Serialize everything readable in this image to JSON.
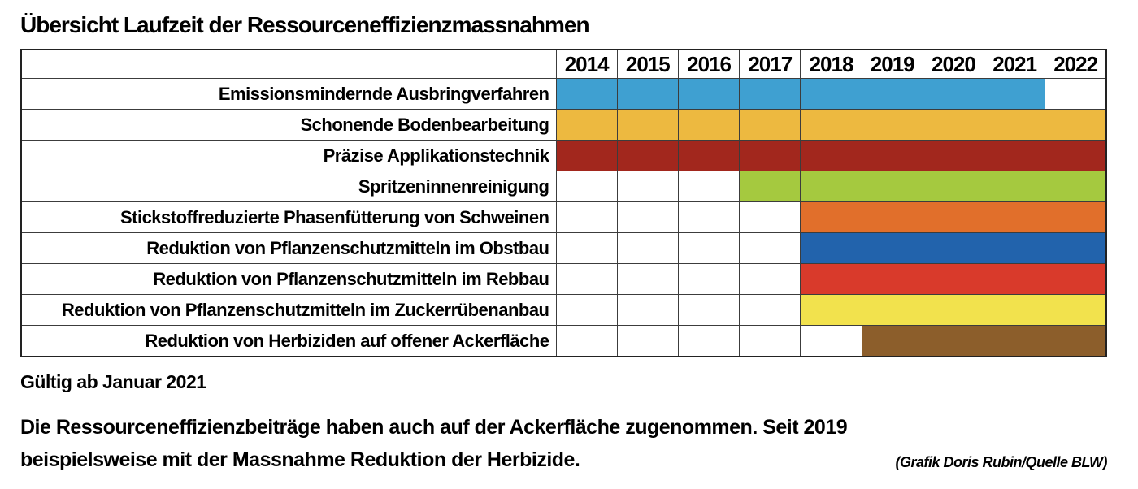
{
  "title": "Übersicht Laufzeit der Ressourceneffizienzmassnahmen",
  "chart_data": {
    "type": "gantt",
    "x_axis_label": "",
    "y_axis_label": "",
    "years": [
      2014,
      2015,
      2016,
      2017,
      2018,
      2019,
      2020,
      2021,
      2022
    ],
    "grid": true,
    "legend_position": "none",
    "measures": [
      {
        "label": "Emissionsmindernde Ausbringverfahren",
        "start": 2014,
        "end": 2021,
        "color": "#3FA0D1"
      },
      {
        "label": "Schonende Bodenbearbeitung",
        "start": 2014,
        "end": 2022,
        "color": "#EDB940"
      },
      {
        "label": "Präzise Applikationstechnik",
        "start": 2014,
        "end": 2022,
        "color": "#A2271D"
      },
      {
        "label": "Spritzeninnenreinigung",
        "start": 2017,
        "end": 2022,
        "color": "#A5C93F"
      },
      {
        "label": "Stickstoffreduzierte Phasenfütterung von Schweinen",
        "start": 2018,
        "end": 2022,
        "color": "#E16F2B"
      },
      {
        "label": "Reduktion von Pflanzenschutzmitteln im Obstbau",
        "start": 2018,
        "end": 2022,
        "color": "#2263AC"
      },
      {
        "label": "Reduktion von Pflanzenschutzmitteln im Rebbau",
        "start": 2018,
        "end": 2022,
        "color": "#D93A2B"
      },
      {
        "label": "Reduktion von Pflanzenschutzmitteln im Zuckerrübenanbau",
        "start": 2018,
        "end": 2022,
        "color": "#F2E24D"
      },
      {
        "label": "Reduktion von Herbiziden auf offener Ackerfläche",
        "start": 2019,
        "end": 2022,
        "color": "#8C5E2B"
      }
    ],
    "border_color": "#3c3c3c",
    "background_color": "#ffffff"
  },
  "footer": {
    "validity": "Gültig ab Januar 2021",
    "caption_lines": [
      "Die Ressourceneffizienzbeiträge haben auch auf der Ackerfläche zugenommen. Seit 2019",
      "beispielsweise mit der Massnahme Reduktion der Herbizide."
    ],
    "credit": "(Grafik Doris Rubin/Quelle BLW)"
  }
}
